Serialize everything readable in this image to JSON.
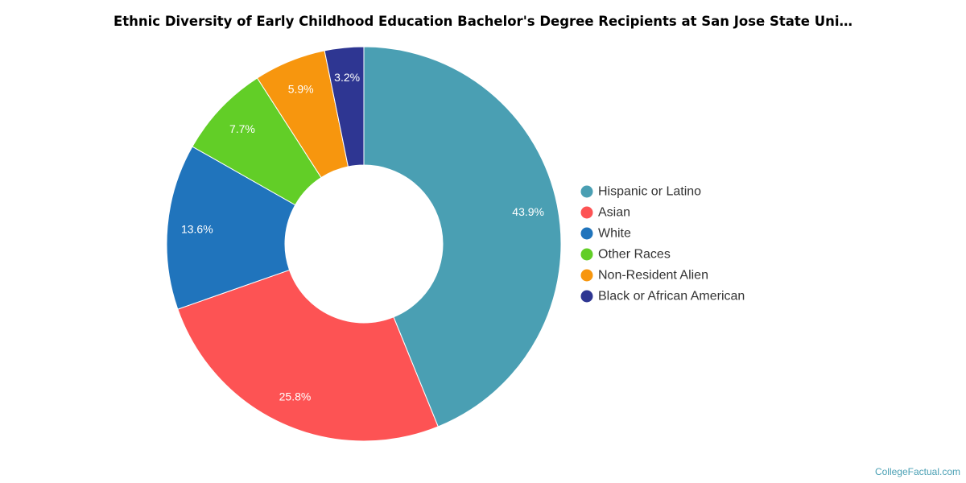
{
  "chart_data": {
    "type": "pie",
    "title": "Ethnic Diversity of Early Childhood Education Bachelor's Degree Recipients at San Jose State Uni…",
    "donut": true,
    "legend_position": "right",
    "slices": [
      {
        "label": "Hispanic or Latino",
        "value": 43.9,
        "display": "43.9%",
        "color": "#4a9fb3"
      },
      {
        "label": "Asian",
        "value": 25.8,
        "display": "25.8%",
        "color": "#fd5354"
      },
      {
        "label": "White",
        "value": 13.6,
        "display": "13.6%",
        "color": "#2074bc"
      },
      {
        "label": "Other Races",
        "value": 7.7,
        "display": "7.7%",
        "color": "#62ce27"
      },
      {
        "label": "Non-Resident Alien",
        "value": 5.9,
        "display": "5.9%",
        "color": "#f7960e"
      },
      {
        "label": "Black or African American",
        "value": 3.2,
        "display": "3.2%",
        "color": "#2e3692"
      }
    ]
  },
  "watermark": "CollegeFactual.com"
}
